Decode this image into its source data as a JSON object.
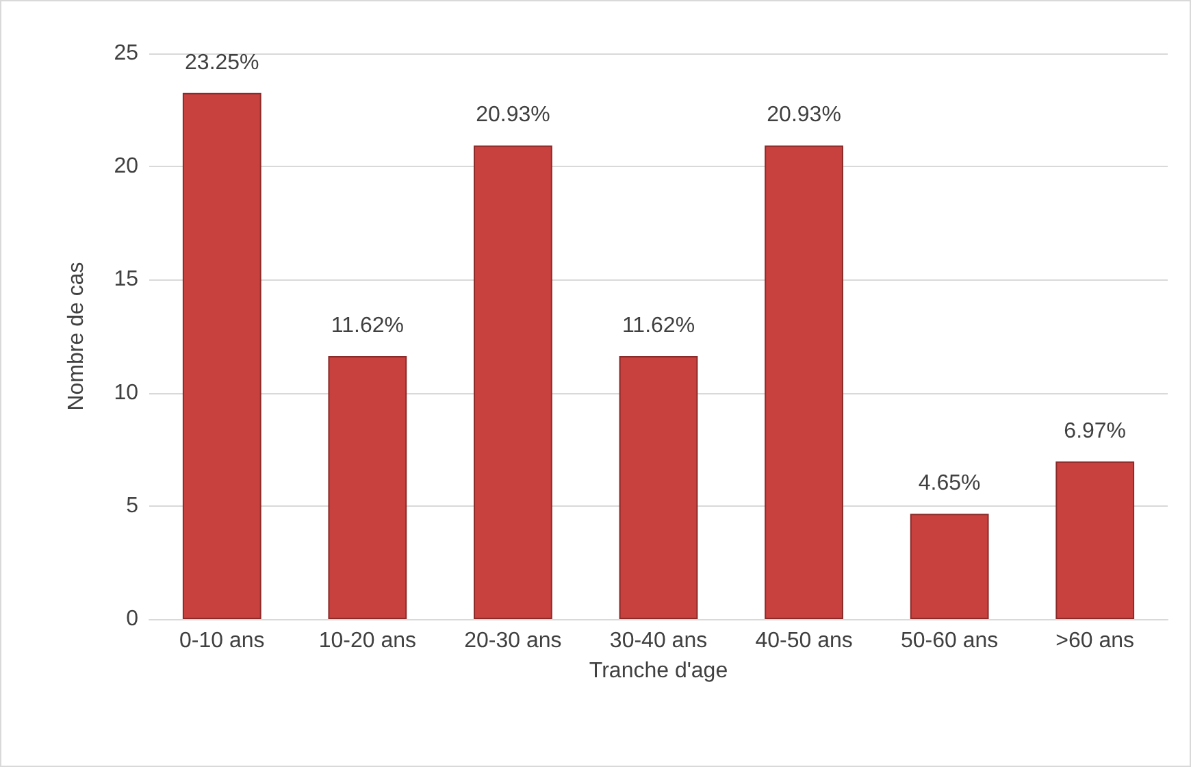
{
  "chart_data": {
    "type": "bar",
    "xlabel": "Tranche d'age",
    "ylabel": "Nombre de cas",
    "categories": [
      "0-10 ans",
      "10-20 ans",
      "20-30 ans",
      "30-40 ans",
      "40-50 ans",
      "50-60 ans",
      ">60 ans"
    ],
    "values": [
      23.25,
      11.62,
      20.93,
      11.62,
      20.93,
      4.65,
      6.97
    ],
    "value_labels": [
      "23.25%",
      "11.62%",
      "20.93%",
      "11.62%",
      "20.93%",
      "4.65%",
      "6.97%"
    ],
    "color": "#c9413f",
    "ylim": [
      0,
      25
    ],
    "yticks": [
      0,
      5,
      10,
      15,
      20,
      25
    ],
    "grid": "y"
  }
}
